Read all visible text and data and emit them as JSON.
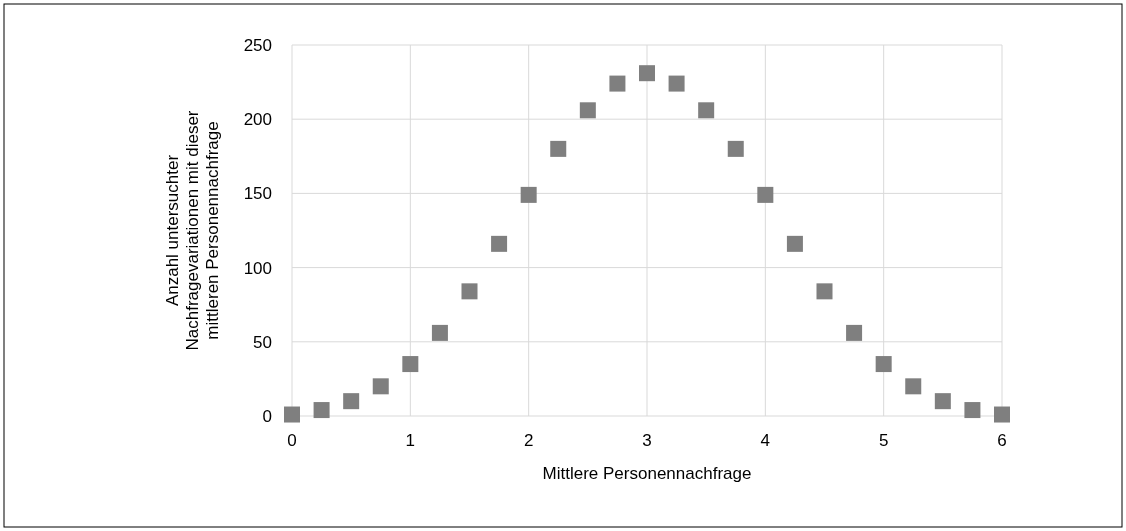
{
  "chart_data": {
    "type": "scatter",
    "xlabel": "Mittlere Personennachfrage",
    "ylabel": "Anzahl untersuchter Nachfragevariationen mit dieser mittleren Personennachfrage",
    "x": [
      0,
      0.25,
      0.5,
      0.75,
      1,
      1.25,
      1.5,
      1.75,
      2,
      2.25,
      2.5,
      2.75,
      3,
      3.25,
      3.5,
      3.75,
      4,
      4.25,
      4.5,
      4.75,
      5,
      5.25,
      5.5,
      5.75,
      6
    ],
    "series": [
      {
        "color": "#7f7f7f",
        "values": [
          1,
          4,
          10,
          20,
          35,
          56,
          84,
          116,
          149,
          180,
          206,
          224,
          231,
          224,
          206,
          180,
          149,
          116,
          84,
          56,
          35,
          20,
          10,
          4,
          1
        ]
      }
    ],
    "xlim": [
      0,
      6
    ],
    "xticks": [
      0,
      1,
      2,
      3,
      4,
      5,
      6
    ],
    "ylim": [
      0,
      250
    ],
    "yticks": [
      0,
      50,
      100,
      150,
      200,
      250
    ],
    "grid": true,
    "marker": "square"
  }
}
